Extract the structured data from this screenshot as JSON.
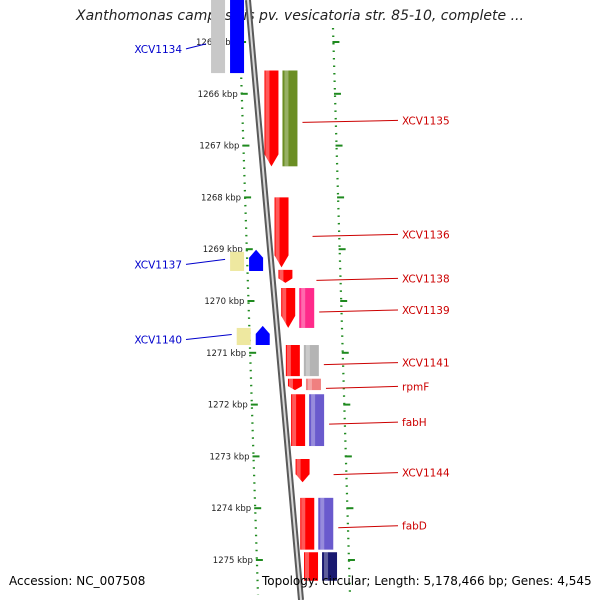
{
  "title": "Xanthomonas campestris pv. vesicatoria str. 85-10, complete ...",
  "accession": "Accession: NC_007508",
  "topology": "Topology: circular; Length: 5,178,466 bp; Genes: 4,545",
  "colors": {
    "backbone": "#8c8c8c",
    "tick": "#1f8a1f",
    "forward_label": "#cc0000",
    "reverse_label": "#0000cc"
  },
  "ruler": [
    {
      "kbp": 1265,
      "label": "1265 kbp"
    },
    {
      "kbp": 1266,
      "label": "1266 kbp"
    },
    {
      "kbp": 1267,
      "label": "1267 kbp"
    },
    {
      "kbp": 1268,
      "label": "1268 kbp"
    },
    {
      "kbp": 1269,
      "label": "1269 kbp"
    },
    {
      "kbp": 1270,
      "label": "1270 kbp"
    },
    {
      "kbp": 1271,
      "label": "1271 kbp"
    },
    {
      "kbp": 1272,
      "label": "1272 kbp"
    },
    {
      "kbp": 1273,
      "label": "1273 kbp"
    },
    {
      "kbp": 1274,
      "label": "1274 kbp"
    },
    {
      "kbp": 1275,
      "label": "1275 kbp"
    }
  ],
  "genes": [
    {
      "name": "XCV1134",
      "strand": "reverse",
      "start_kbp": 1264.55,
      "end_kbp": 1265.6,
      "category_color": "#c8c8c8",
      "arrow_color": "#0000ff",
      "arrowhead": false
    },
    {
      "name": "XCV1135",
      "strand": "forward",
      "start_kbp": 1265.55,
      "end_kbp": 1267.4,
      "category_color": "#6b8e23",
      "arrow_color": "#ff0000",
      "arrowhead": true
    },
    {
      "name": "XCV1136",
      "strand": "forward",
      "start_kbp": 1268.0,
      "end_kbp": 1269.35,
      "category_color": null,
      "arrow_color": "#ff0000",
      "arrowhead": true
    },
    {
      "name": "XCV1137",
      "strand": "reverse",
      "start_kbp": 1269.05,
      "end_kbp": 1269.42,
      "category_color": "#eee8a0",
      "arrow_color": "#0000ff",
      "arrowhead": true
    },
    {
      "name": "XCV1138",
      "strand": "forward",
      "start_kbp": 1269.4,
      "end_kbp": 1269.65,
      "category_color": null,
      "arrow_color": "#ff0000",
      "arrowhead": true
    },
    {
      "name": "XCV1139",
      "strand": "forward",
      "start_kbp": 1269.75,
      "end_kbp": 1270.52,
      "category_color": "#ff2a8a",
      "arrow_color": "#ff0000",
      "arrowhead": true
    },
    {
      "name": "XCV1140",
      "strand": "reverse",
      "start_kbp": 1270.52,
      "end_kbp": 1270.85,
      "category_color": "#eee8a0",
      "arrow_color": "#0000ff",
      "arrowhead": true
    },
    {
      "name": "XCV1141",
      "strand": "forward",
      "start_kbp": 1270.85,
      "end_kbp": 1271.45,
      "category_color": "#b4b4b4",
      "arrow_color": "#ff0000",
      "arrowhead": false
    },
    {
      "name": "rpmF",
      "strand": "forward",
      "start_kbp": 1271.5,
      "end_kbp": 1271.72,
      "category_color": "#f08080",
      "arrow_color": "#ff0000",
      "arrowhead": true
    },
    {
      "name": "fabH",
      "strand": "forward",
      "start_kbp": 1271.8,
      "end_kbp": 1272.8,
      "category_color": "#6a5acd",
      "arrow_color": "#ff0000",
      "arrowhead": false
    },
    {
      "name": "XCV1144",
      "strand": "forward",
      "start_kbp": 1273.05,
      "end_kbp": 1273.5,
      "category_color": null,
      "arrow_color": "#ff0000",
      "arrowhead": true
    },
    {
      "name": "fabD",
      "strand": "forward",
      "start_kbp": 1273.8,
      "end_kbp": 1274.8,
      "category_color": "#6a5acd",
      "arrow_color": "#ff0000",
      "arrowhead": false
    },
    {
      "name": "",
      "strand": "forward",
      "start_kbp": 1274.85,
      "end_kbp": 1275.4,
      "category_color": "#191970",
      "arrow_color": "#ff0000",
      "arrowhead": false
    }
  ]
}
